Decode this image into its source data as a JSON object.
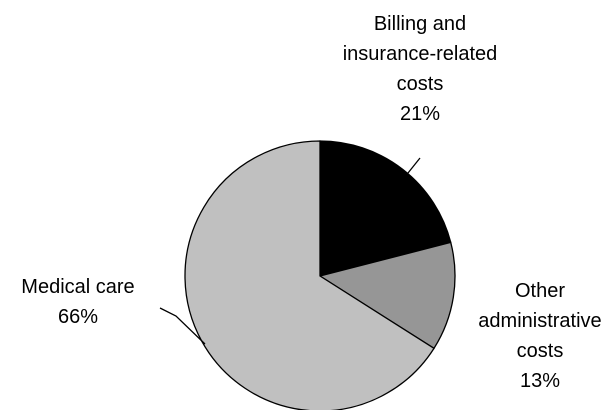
{
  "chart_data": {
    "type": "pie",
    "title": "",
    "slices": [
      {
        "label_lines": [
          "Billing and",
          "insurance-related",
          "costs"
        ],
        "value": 21,
        "value_label": "21%",
        "color": "#000000"
      },
      {
        "label_lines": [
          "Other",
          "administrative",
          "costs"
        ],
        "value": 13,
        "value_label": "13%",
        "color": "#969696"
      },
      {
        "label_lines": [
          "Medical care"
        ],
        "value": 66,
        "value_label": "66%",
        "color": "#c0c0c0"
      }
    ],
    "start_angle": "12 o'clock",
    "direction": "clockwise",
    "legend": "none",
    "outline_color": "#000000"
  }
}
